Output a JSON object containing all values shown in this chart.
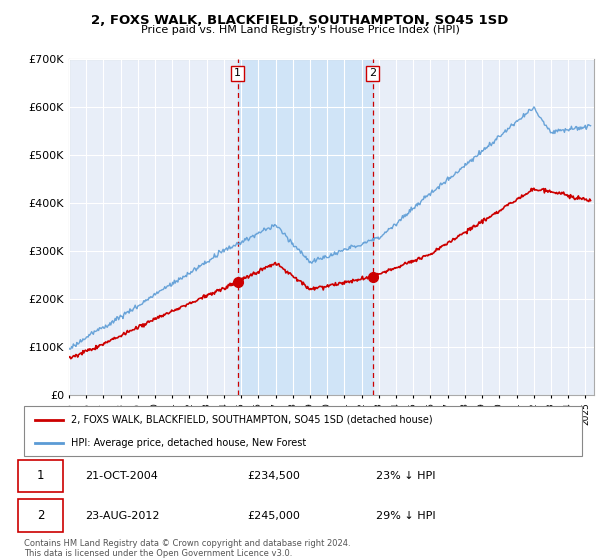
{
  "title": "2, FOXS WALK, BLACKFIELD, SOUTHAMPTON, SO45 1SD",
  "subtitle": "Price paid vs. HM Land Registry's House Price Index (HPI)",
  "ylim": [
    0,
    700000
  ],
  "xlim_start": 1995.0,
  "xlim_end": 2025.5,
  "hpi_color": "#5b9bd5",
  "price_color": "#cc0000",
  "background_plot": "#e8eef8",
  "shaded_region_color": "#d0e4f7",
  "grid_color": "#ffffff",
  "marker1_date": 2004.8,
  "marker2_date": 2012.65,
  "marker1_price": 234500,
  "marker2_price": 245000,
  "legend_label1": "2, FOXS WALK, BLACKFIELD, SOUTHAMPTON, SO45 1SD (detached house)",
  "legend_label2": "HPI: Average price, detached house, New Forest",
  "annotation1_date": "21-OCT-2004",
  "annotation1_price": "£234,500",
  "annotation1_hpi": "23% ↓ HPI",
  "annotation2_date": "23-AUG-2012",
  "annotation2_price": "£245,000",
  "annotation2_hpi": "29% ↓ HPI",
  "footer": "Contains HM Land Registry data © Crown copyright and database right 2024.\nThis data is licensed under the Open Government Licence v3.0."
}
